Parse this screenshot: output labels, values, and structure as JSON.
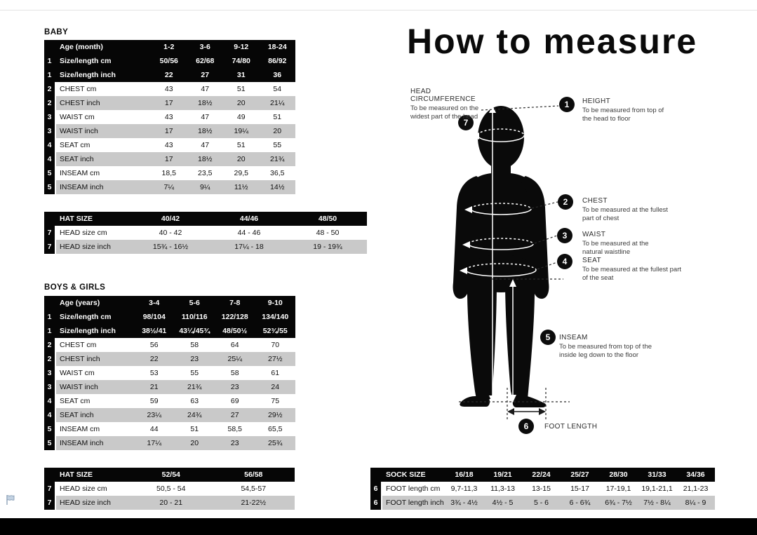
{
  "page_title": "How to measure",
  "colors": {
    "table_header": "#060606",
    "row_alt": "#c9c9c9",
    "flag_blue": "#c3d2e2"
  },
  "tables": {
    "baby": {
      "section_label": "BABY",
      "columns": [
        "Age (month)",
        "1-2",
        "3-6",
        "9-12",
        "18-24"
      ],
      "header_rows": [
        {
          "num": "1",
          "label": "Size/length cm",
          "values": [
            "50/56",
            "62/68",
            "74/80",
            "86/92"
          ]
        },
        {
          "num": "1",
          "label": "Size/length inch",
          "values": [
            "22",
            "27",
            "31",
            "36"
          ]
        }
      ],
      "body_rows": [
        {
          "num": "2",
          "label": "CHEST cm",
          "values": [
            "43",
            "47",
            "51",
            "54"
          ]
        },
        {
          "num": "2",
          "label": "CHEST inch",
          "values": [
            "17",
            "18½",
            "20",
            "21¼"
          ]
        },
        {
          "num": "3",
          "label": "WAIST cm",
          "values": [
            "43",
            "47",
            "49",
            "51"
          ]
        },
        {
          "num": "3",
          "label": "WAIST inch",
          "values": [
            "17",
            "18½",
            "19¼",
            "20"
          ]
        },
        {
          "num": "4",
          "label": "SEAT cm",
          "values": [
            "43",
            "47",
            "51",
            "55"
          ]
        },
        {
          "num": "4",
          "label": "SEAT inch",
          "values": [
            "17",
            "18½",
            "20",
            "21¾"
          ]
        },
        {
          "num": "5",
          "label": "INSEAM cm",
          "values": [
            "18,5",
            "23,5",
            "29,5",
            "36,5"
          ]
        },
        {
          "num": "5",
          "label": "INSEAM inch",
          "values": [
            "7¼",
            "9¼",
            "11½",
            "14½"
          ]
        }
      ]
    },
    "baby_hat": {
      "columns": [
        "HAT SIZE",
        "40/42",
        "44/46",
        "48/50"
      ],
      "header_rows": [],
      "body_rows": [
        {
          "num": "7",
          "label": "HEAD size cm",
          "values": [
            "40 - 42",
            "44 - 46",
            "48 - 50"
          ]
        },
        {
          "num": "7",
          "label": "HEAD size inch",
          "values": [
            "15¾ - 16½",
            "17¼ - 18",
            "19 - 19¾"
          ]
        }
      ]
    },
    "kids": {
      "section_label": "BOYS & GIRLS",
      "columns": [
        "Age (years)",
        "3-4",
        "5-6",
        "7-8",
        "9-10"
      ],
      "header_rows": [
        {
          "num": "1",
          "label": "Size/length cm",
          "values": [
            "98/104",
            "110/116",
            "122/128",
            "134/140"
          ]
        },
        {
          "num": "1",
          "label": "Size/length inch",
          "values": [
            "38½/41",
            "43¼/45¾",
            "48/50½",
            "52¾/55"
          ]
        }
      ],
      "body_rows": [
        {
          "num": "2",
          "label": "CHEST cm",
          "values": [
            "56",
            "58",
            "64",
            "70"
          ]
        },
        {
          "num": "2",
          "label": "CHEST inch",
          "values": [
            "22",
            "23",
            "25¼",
            "27½"
          ]
        },
        {
          "num": "3",
          "label": "WAIST cm",
          "values": [
            "53",
            "55",
            "58",
            "61"
          ]
        },
        {
          "num": "3",
          "label": "WAIST inch",
          "values": [
            "21",
            "21¾",
            "23",
            "24"
          ]
        },
        {
          "num": "4",
          "label": "SEAT cm",
          "values": [
            "59",
            "63",
            "69",
            "75"
          ]
        },
        {
          "num": "4",
          "label": "SEAT inch",
          "values": [
            "23¼",
            "24¾",
            "27",
            "29½"
          ]
        },
        {
          "num": "5",
          "label": "INSEAM cm",
          "values": [
            "44",
            "51",
            "58,5",
            "65,5"
          ]
        },
        {
          "num": "5",
          "label": "INSEAM inch",
          "values": [
            "17¼",
            "20",
            "23",
            "25¾"
          ]
        }
      ]
    },
    "kids_hat": {
      "columns": [
        "HAT SIZE",
        "52/54",
        "56/58"
      ],
      "header_rows": [],
      "body_rows": [
        {
          "num": "7",
          "label": "HEAD size cm",
          "values": [
            "50,5 - 54",
            "54,5-57"
          ]
        },
        {
          "num": "7",
          "label": "HEAD size inch",
          "values": [
            "20 - 21",
            "21-22½"
          ]
        }
      ]
    },
    "sock": {
      "columns": [
        "SOCK SIZE",
        "16/18",
        "19/21",
        "22/24",
        "25/27",
        "28/30",
        "31/33",
        "34/36"
      ],
      "header_rows": [],
      "body_rows": [
        {
          "num": "6",
          "label": "FOOT length cm",
          "values": [
            "9,7-11,3",
            "11,3-13",
            "13-15",
            "15-17",
            "17-19,1",
            "19,1-21,1",
            "21,1-23"
          ]
        },
        {
          "num": "6",
          "label": "FOOT length inch",
          "values": [
            "3¾ - 4½",
            "4½ - 5",
            "5 - 6",
            "6 - 6¾",
            "6¾ - 7½",
            "7½ - 8¼",
            "8¼ - 9"
          ]
        }
      ]
    }
  },
  "diagram": {
    "measures": [
      {
        "num": "7",
        "title": "HEAD CIRCUMFERENCE",
        "desc": "To be measured on the widest part of the head"
      },
      {
        "num": "1",
        "title": "HEIGHT",
        "desc": "To be measured from top of the head to floor"
      },
      {
        "num": "2",
        "title": "CHEST",
        "desc": "To be measured at the fullest part of chest"
      },
      {
        "num": "3",
        "title": "WAIST",
        "desc": "To be measured at the natural waistline"
      },
      {
        "num": "4",
        "title": "SEAT",
        "desc": "To be measured at the fullest part of the seat"
      },
      {
        "num": "5",
        "title": "INSEAM",
        "desc": "To be measured from top of the inside leg down to the floor"
      },
      {
        "num": "6",
        "title": "FOOT LENGTH",
        "desc": ""
      }
    ]
  }
}
